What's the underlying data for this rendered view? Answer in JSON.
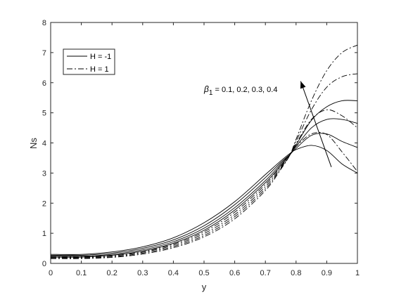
{
  "chart_data": {
    "type": "line",
    "xlabel": "y",
    "ylabel": "Ns",
    "xlim": [
      0,
      1
    ],
    "ylim": [
      0,
      8
    ],
    "xticks": [
      "0",
      "0.1",
      "0.2",
      "0.3",
      "0.4",
      "0.5",
      "0.6",
      "0.7",
      "0.8",
      "0.9",
      "1"
    ],
    "yticks": [
      "0",
      "1",
      "2",
      "3",
      "4",
      "5",
      "6",
      "7",
      "8"
    ],
    "legend": {
      "position": "top-left",
      "entries": [
        {
          "label": "H = -1",
          "style": "solid"
        },
        {
          "label": "H = 1",
          "style": "dashdot"
        }
      ]
    },
    "annotation": {
      "symbol": "β",
      "subscript": "1",
      "text": " = 0.1, 0.2, 0.3, 0.4",
      "arrow_from": [
        0.915,
        3.2
      ],
      "arrow_to": [
        0.815,
        6.05
      ]
    },
    "x": [
      0,
      0.1,
      0.2,
      0.3,
      0.4,
      0.5,
      0.6,
      0.7,
      0.75,
      0.78,
      0.8,
      0.85,
      0.9,
      0.95,
      1.0
    ],
    "series": [
      {
        "style": "solid",
        "values": [
          0.3,
          0.3,
          0.38,
          0.55,
          0.85,
          1.35,
          2.05,
          2.95,
          3.4,
          3.65,
          3.78,
          3.92,
          3.75,
          3.3,
          3.0
        ]
      },
      {
        "style": "solid",
        "values": [
          0.27,
          0.27,
          0.34,
          0.5,
          0.78,
          1.25,
          1.95,
          2.85,
          3.35,
          3.62,
          3.82,
          4.25,
          4.3,
          4.05,
          3.85
        ]
      },
      {
        "style": "solid",
        "values": [
          0.24,
          0.24,
          0.3,
          0.45,
          0.72,
          1.17,
          1.85,
          2.75,
          3.3,
          3.62,
          3.88,
          4.5,
          4.78,
          4.78,
          4.65
        ]
      },
      {
        "style": "solid",
        "values": [
          0.21,
          0.21,
          0.27,
          0.41,
          0.67,
          1.1,
          1.77,
          2.68,
          3.25,
          3.62,
          3.93,
          4.75,
          5.2,
          5.4,
          5.4
        ]
      },
      {
        "style": "dashdot",
        "values": [
          0.22,
          0.22,
          0.27,
          0.4,
          0.64,
          1.05,
          1.7,
          2.62,
          3.22,
          3.6,
          3.88,
          4.3,
          4.28,
          3.7,
          3.05
        ]
      },
      {
        "style": "dashdot",
        "values": [
          0.2,
          0.2,
          0.25,
          0.37,
          0.6,
          0.99,
          1.62,
          2.55,
          3.18,
          3.6,
          3.97,
          4.78,
          5.1,
          4.9,
          4.5
        ]
      },
      {
        "style": "dashdot",
        "values": [
          0.18,
          0.18,
          0.22,
          0.34,
          0.56,
          0.93,
          1.55,
          2.48,
          3.15,
          3.6,
          4.05,
          5.1,
          5.85,
          6.2,
          6.3
        ]
      },
      {
        "style": "dashdot",
        "values": [
          0.16,
          0.16,
          0.2,
          0.31,
          0.52,
          0.88,
          1.48,
          2.42,
          3.12,
          3.6,
          4.12,
          5.4,
          6.4,
          7.0,
          7.25
        ]
      }
    ]
  }
}
